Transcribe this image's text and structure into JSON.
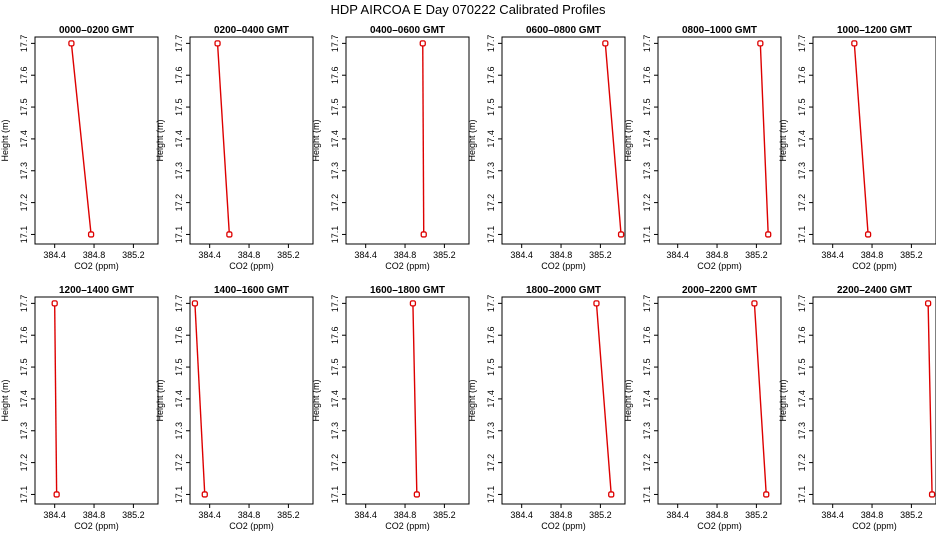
{
  "figure": {
    "title": "HDP  AIRCOA E  Day 070222  Calibrated Profiles"
  },
  "colors": {
    "series": "#dd0000",
    "frame": "#000000",
    "background": "#ffffff"
  },
  "chart_data": [
    {
      "type": "line",
      "title": "0000–0200 GMT",
      "xlabel": "CO2 (ppm)",
      "ylabel": "Height (m)",
      "xlim": [
        384.2,
        385.45
      ],
      "ylim": [
        17.07,
        17.72
      ],
      "xticks": [
        "384.4",
        "384.8",
        "385.2"
      ],
      "yticks": [
        "17.1",
        "17.2",
        "17.3",
        "17.4",
        "17.5",
        "17.6",
        "17.7"
      ],
      "points": [
        {
          "x": 384.57,
          "y": 17.7
        },
        {
          "x": 384.77,
          "y": 17.1
        }
      ]
    },
    {
      "type": "line",
      "title": "0200–0400 GMT",
      "xlabel": "CO2 (ppm)",
      "ylabel": "Height (m)",
      "xlim": [
        384.2,
        385.45
      ],
      "ylim": [
        17.07,
        17.72
      ],
      "xticks": [
        "384.4",
        "384.8",
        "385.2"
      ],
      "yticks": [
        "17.1",
        "17.2",
        "17.3",
        "17.4",
        "17.5",
        "17.6",
        "17.7"
      ],
      "points": [
        {
          "x": 384.48,
          "y": 17.7
        },
        {
          "x": 384.6,
          "y": 17.1
        }
      ]
    },
    {
      "type": "line",
      "title": "0400–0600 GMT",
      "xlabel": "CO2 (ppm)",
      "ylabel": "Height (m)",
      "xlim": [
        384.2,
        385.45
      ],
      "ylim": [
        17.07,
        17.72
      ],
      "xticks": [
        "384.4",
        "384.8",
        "385.2"
      ],
      "yticks": [
        "17.1",
        "17.2",
        "17.3",
        "17.4",
        "17.5",
        "17.6",
        "17.7"
      ],
      "points": [
        {
          "x": 384.98,
          "y": 17.7
        },
        {
          "x": 384.99,
          "y": 17.1
        }
      ]
    },
    {
      "type": "line",
      "title": "0600–0800 GMT",
      "xlabel": "CO2 (ppm)",
      "ylabel": "Height (m)",
      "xlim": [
        384.2,
        385.45
      ],
      "ylim": [
        17.07,
        17.72
      ],
      "xticks": [
        "384.4",
        "384.8",
        "385.2"
      ],
      "yticks": [
        "17.1",
        "17.2",
        "17.3",
        "17.4",
        "17.5",
        "17.6",
        "17.7"
      ],
      "points": [
        {
          "x": 385.25,
          "y": 17.7
        },
        {
          "x": 385.41,
          "y": 17.1
        }
      ]
    },
    {
      "type": "line",
      "title": "0800–1000 GMT",
      "xlabel": "CO2 (ppm)",
      "ylabel": "Height (m)",
      "xlim": [
        384.2,
        385.45
      ],
      "ylim": [
        17.07,
        17.72
      ],
      "xticks": [
        "384.4",
        "384.8",
        "385.2"
      ],
      "yticks": [
        "17.1",
        "17.2",
        "17.3",
        "17.4",
        "17.5",
        "17.6",
        "17.7"
      ],
      "points": [
        {
          "x": 385.24,
          "y": 17.7
        },
        {
          "x": 385.32,
          "y": 17.1
        }
      ]
    },
    {
      "type": "line",
      "title": "1000–1200 GMT",
      "xlabel": "CO2 (ppm)",
      "ylabel": "Height (m)",
      "xlim": [
        384.2,
        385.45
      ],
      "ylim": [
        17.07,
        17.72
      ],
      "xticks": [
        "384.4",
        "384.8",
        "385.2"
      ],
      "yticks": [
        "17.1",
        "17.2",
        "17.3",
        "17.4",
        "17.5",
        "17.6",
        "17.7"
      ],
      "points": [
        {
          "x": 384.62,
          "y": 17.7
        },
        {
          "x": 384.76,
          "y": 17.1
        }
      ]
    },
    {
      "type": "line",
      "title": "1200–1400 GMT",
      "xlabel": "CO2 (ppm)",
      "ylabel": "Height (m)",
      "xlim": [
        384.2,
        385.45
      ],
      "ylim": [
        17.07,
        17.72
      ],
      "xticks": [
        "384.4",
        "384.8",
        "385.2"
      ],
      "yticks": [
        "17.1",
        "17.2",
        "17.3",
        "17.4",
        "17.5",
        "17.6",
        "17.7"
      ],
      "points": [
        {
          "x": 384.4,
          "y": 17.7
        },
        {
          "x": 384.42,
          "y": 17.1
        }
      ]
    },
    {
      "type": "line",
      "title": "1400–1600 GMT",
      "xlabel": "CO2 (ppm)",
      "ylabel": "Height (m)",
      "xlim": [
        384.2,
        385.45
      ],
      "ylim": [
        17.07,
        17.72
      ],
      "xticks": [
        "384.4",
        "384.8",
        "385.2"
      ],
      "yticks": [
        "17.1",
        "17.2",
        "17.3",
        "17.4",
        "17.5",
        "17.6",
        "17.7"
      ],
      "points": [
        {
          "x": 384.25,
          "y": 17.7
        },
        {
          "x": 384.35,
          "y": 17.1
        }
      ]
    },
    {
      "type": "line",
      "title": "1600–1800 GMT",
      "xlabel": "CO2 (ppm)",
      "ylabel": "Height (m)",
      "xlim": [
        384.2,
        385.45
      ],
      "ylim": [
        17.07,
        17.72
      ],
      "xticks": [
        "384.4",
        "384.8",
        "385.2"
      ],
      "yticks": [
        "17.1",
        "17.2",
        "17.3",
        "17.4",
        "17.5",
        "17.6",
        "17.7"
      ],
      "points": [
        {
          "x": 384.88,
          "y": 17.7
        },
        {
          "x": 384.92,
          "y": 17.1
        }
      ]
    },
    {
      "type": "line",
      "title": "1800–2000 GMT",
      "xlabel": "CO2 (ppm)",
      "ylabel": "Height (m)",
      "xlim": [
        384.2,
        385.45
      ],
      "ylim": [
        17.07,
        17.72
      ],
      "xticks": [
        "384.4",
        "384.8",
        "385.2"
      ],
      "yticks": [
        "17.1",
        "17.2",
        "17.3",
        "17.4",
        "17.5",
        "17.6",
        "17.7"
      ],
      "points": [
        {
          "x": 385.16,
          "y": 17.7
        },
        {
          "x": 385.31,
          "y": 17.1
        }
      ]
    },
    {
      "type": "line",
      "title": "2000–2200 GMT",
      "xlabel": "CO2 (ppm)",
      "ylabel": "Height (m)",
      "xlim": [
        384.2,
        385.45
      ],
      "ylim": [
        17.07,
        17.72
      ],
      "xticks": [
        "384.4",
        "384.8",
        "385.2"
      ],
      "yticks": [
        "17.1",
        "17.2",
        "17.3",
        "17.4",
        "17.5",
        "17.6",
        "17.7"
      ],
      "points": [
        {
          "x": 385.18,
          "y": 17.7
        },
        {
          "x": 385.3,
          "y": 17.1
        }
      ]
    },
    {
      "type": "line",
      "title": "2200–2400 GMT",
      "xlabel": "CO2 (ppm)",
      "ylabel": "Height (m)",
      "xlim": [
        384.2,
        385.45
      ],
      "ylim": [
        17.07,
        17.72
      ],
      "xticks": [
        "384.4",
        "384.8",
        "385.2"
      ],
      "yticks": [
        "17.1",
        "17.2",
        "17.3",
        "17.4",
        "17.5",
        "17.6",
        "17.7"
      ],
      "points": [
        {
          "x": 385.37,
          "y": 17.7
        },
        {
          "x": 385.41,
          "y": 17.1
        }
      ]
    }
  ]
}
